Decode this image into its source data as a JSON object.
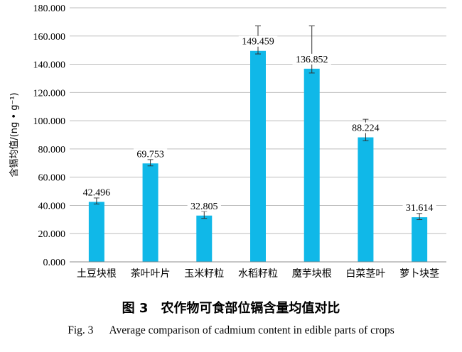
{
  "chart_data": {
    "type": "bar",
    "ylabel": "含镉均值/(ng • g⁻¹)",
    "xlabel": "",
    "ylim": [
      0,
      180
    ],
    "ytick_step": 20,
    "ytick_decimals": 3,
    "grid": "horizontal",
    "bar_color": "#10b8e8",
    "categories": [
      "土豆块根",
      "茶叶叶片",
      "玉米籽粒",
      "水稻籽粒",
      "魔芋块根",
      "白菜茎叶",
      "萝卜块茎"
    ],
    "values": [
      42.496,
      69.753,
      32.805,
      149.459,
      136.852,
      88.224,
      31.614
    ],
    "value_labels": [
      "42.496",
      "69.753",
      "32.805",
      "149.459",
      "136.852",
      "88.224",
      "31.614"
    ],
    "error_bars": [
      [
        41.0,
        45.3
      ],
      [
        68.0,
        72.5
      ],
      [
        30.8,
        35.8
      ],
      [
        147.3,
        167.2
      ],
      [
        133.8,
        167.2
      ],
      [
        85.8,
        101.0
      ],
      [
        29.9,
        34.3
      ]
    ]
  },
  "caption": {
    "cn_fig_number": "图 3",
    "cn_title": "农作物可食部位镉含量均值对比",
    "en_fig_number": "Fig. 3",
    "en_title": "Average comparison of cadmium content in edible parts of crops"
  }
}
